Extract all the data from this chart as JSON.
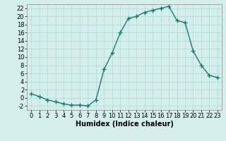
{
  "x": [
    0,
    1,
    2,
    3,
    4,
    5,
    6,
    7,
    8,
    9,
    10,
    11,
    12,
    13,
    14,
    15,
    16,
    17,
    18,
    19,
    20,
    21,
    22,
    23
  ],
  "y": [
    1,
    0.3,
    -0.5,
    -1,
    -1.5,
    -1.8,
    -1.8,
    -2,
    -0.5,
    7,
    11,
    16,
    19.5,
    20,
    21,
    21.5,
    22,
    22.5,
    19,
    18.5,
    11.5,
    8,
    5.5,
    5
  ],
  "line_color": "#1a7a6e",
  "marker": "+",
  "marker_size": 4,
  "marker_linewidth": 1.0,
  "linewidth": 1.0,
  "xlabel": "Humidex (Indice chaleur)",
  "xlabel_fontsize": 7,
  "xlabel_fontweight": "bold",
  "background_color": "#d4eeec",
  "grid_color": "#aed8d4",
  "ylim": [
    -3,
    23
  ],
  "xlim": [
    -0.5,
    23.5
  ],
  "yticks": [
    -2,
    0,
    2,
    4,
    6,
    8,
    10,
    12,
    14,
    16,
    18,
    20,
    22
  ],
  "xticks": [
    0,
    1,
    2,
    3,
    4,
    5,
    6,
    7,
    8,
    9,
    10,
    11,
    12,
    13,
    14,
    15,
    16,
    17,
    18,
    19,
    20,
    21,
    22,
    23
  ],
  "tick_fontsize": 6,
  "spine_color": "#888888",
  "spine_linewidth": 0.5
}
